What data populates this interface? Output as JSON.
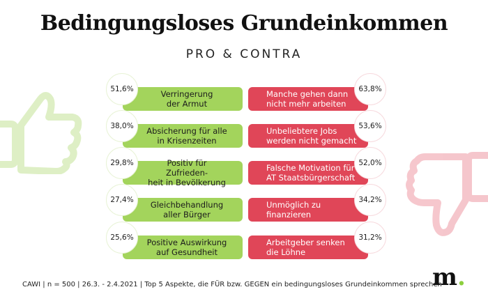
{
  "title": "Bedingungsloses Grundeinkommen",
  "subtitle": "PRO & CONTRA",
  "footer": "CAWI | n = 500 | 26.3. - 2.4.2021 | Top 5 Aspekte, die FÜR bzw. GEGEN ein bedingungsloses Grundeinkommen sprechen",
  "logo": {
    "letter": "m",
    "dot": "."
  },
  "colors": {
    "pro": "#a3d45c",
    "contra": "#e04658",
    "thumb_up": "#a3d45c",
    "thumb_down": "#e04658"
  },
  "icons": {
    "pro": "thumbs-up-icon",
    "contra": "thumbs-down-icon"
  },
  "chart_data": {
    "type": "bar",
    "groups": [
      {
        "name": "PRO",
        "items": [
          {
            "label": "Verringerung\nder Armut",
            "value_label": "51,6%",
            "value": 51.6
          },
          {
            "label": "Absicherung für alle\nin Krisenzeiten",
            "value_label": "38,0%",
            "value": 38.0
          },
          {
            "label": "Positiv für Zufrieden-\nheit in Bevölkerung",
            "value_label": "29,8%",
            "value": 29.8
          },
          {
            "label": "Gleichbehandlung\naller Bürger",
            "value_label": "27,4%",
            "value": 27.4
          },
          {
            "label": "Positive Auswirkung\nauf Gesundheit",
            "value_label": "25,6%",
            "value": 25.6
          }
        ]
      },
      {
        "name": "CONTRA",
        "items": [
          {
            "label": "Manche gehen dann\nnicht mehr arbeiten",
            "value_label": "63,8%",
            "value": 63.8
          },
          {
            "label": "Unbeliebtere Jobs\nwerden nicht gemacht",
            "value_label": "53,6%",
            "value": 53.6
          },
          {
            "label": "Falsche Motivation für\nAT Staatsbürgerschaft",
            "value_label": "52,0%",
            "value": 52.0
          },
          {
            "label": "Unmöglich zu\nfinanzieren",
            "value_label": "34,2%",
            "value": 34.2
          },
          {
            "label": "Arbeitgeber senken\ndie Löhne",
            "value_label": "31,2%",
            "value": 31.2
          }
        ]
      }
    ]
  }
}
